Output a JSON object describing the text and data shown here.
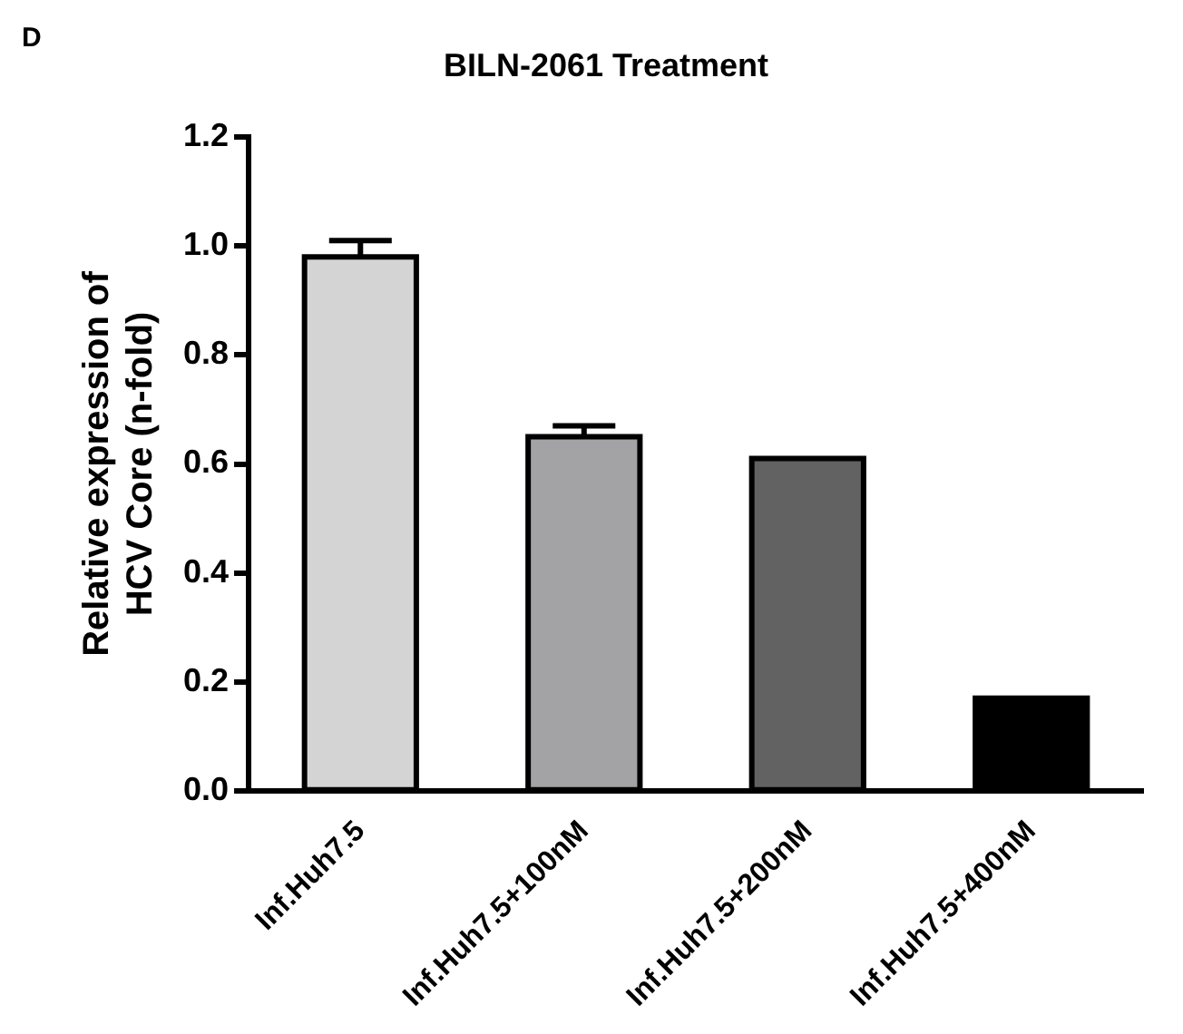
{
  "chart_data": {
    "type": "bar",
    "title": "BILN-2061 Treatment",
    "ylabel": "Relative expression of HCV Core (n-fold)",
    "annotations": [
      "D"
    ],
    "categories": [
      "Inf.Huh7.5",
      "Inf.Huh7.5+100nM",
      "Inf.Huh7.5+200nM",
      "Inf.Huh7.5+400nM"
    ],
    "values": [
      0.98,
      0.65,
      0.61,
      0.17
    ],
    "errors": [
      0.03,
      0.02,
      null,
      null
    ],
    "colors": [
      "#d4d4d4",
      "#a3a3a6",
      "#626262",
      "#000000"
    ],
    "ylim": [
      0,
      1.2
    ],
    "yticks": [
      {
        "value": 0,
        "label": "0.0"
      },
      0.2,
      0.4,
      0.6,
      0.8,
      {
        "value": 1,
        "label": "1.0"
      },
      1.2
    ],
    "grid": false,
    "legend": false
  }
}
